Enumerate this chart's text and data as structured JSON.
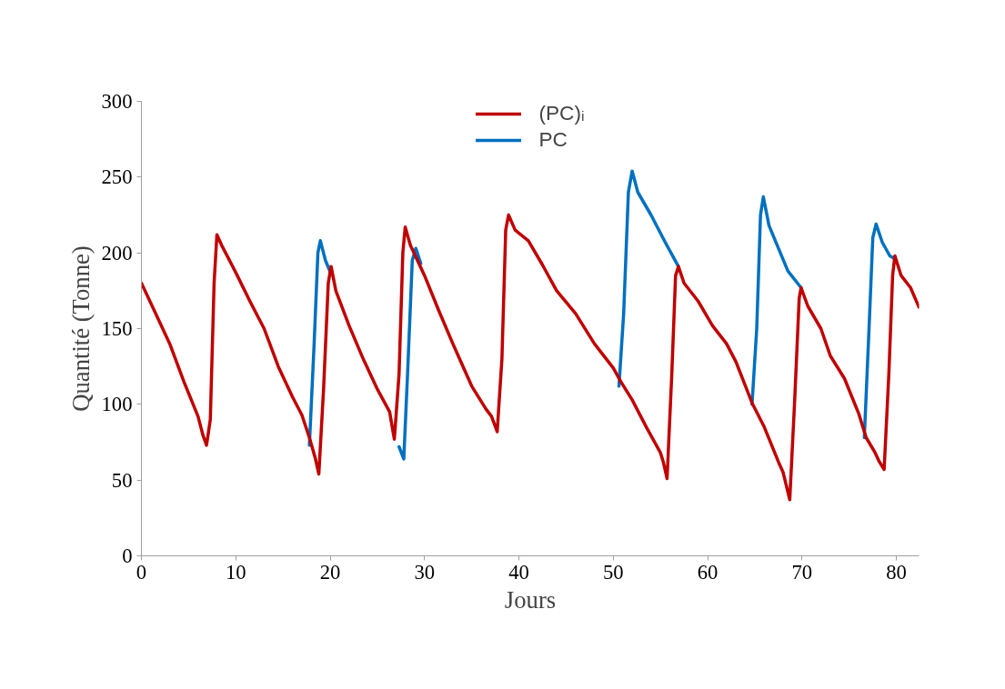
{
  "chart_data": {
    "type": "line",
    "xlabel": "Jours",
    "ylabel": "Quantité (Tonne)",
    "xlim": [
      0,
      82.4
    ],
    "xticks": [
      0,
      10,
      20,
      30,
      40,
      50,
      60,
      70,
      80
    ],
    "ylim": [
      0,
      300
    ],
    "yticks": [
      0,
      50,
      100,
      150,
      200,
      250,
      300
    ],
    "grid": false,
    "legend": "top",
    "line_style": "solid",
    "marker": "none",
    "series": [
      {
        "name": "(PC)ᵢ",
        "color": "#c00000",
        "x": [
          0,
          1.5,
          3,
          4.5,
          6,
          6.5,
          6.9,
          7.3,
          7.7,
          8,
          8.5,
          10,
          11.5,
          13,
          14.5,
          16,
          17,
          17.8,
          18.4,
          18.8,
          19.3,
          19.8,
          20.1,
          20.6,
          22,
          23.5,
          25,
          26.3,
          26.8,
          27.3,
          27.7,
          27.95,
          28.5,
          30,
          31.5,
          33,
          35,
          36.5,
          37.1,
          37.7,
          38.2,
          38.6,
          38.9,
          39.6,
          41,
          42.5,
          44,
          46,
          48,
          50,
          50.8,
          52,
          53.5,
          55,
          55.3,
          55.7,
          56.2,
          56.6,
          56.9,
          57.5,
          59,
          60.5,
          62,
          63,
          64.7,
          66,
          67.5,
          68,
          68.7,
          69.2,
          69.7,
          69.9,
          70.6,
          72,
          73,
          74.5,
          76,
          76.8,
          77.75,
          78.2,
          78.7,
          79.2,
          79.6,
          79.84,
          80.5,
          81.5,
          82.4
        ],
        "values": [
          180,
          160,
          140,
          115,
          92,
          80,
          73,
          90,
          180,
          212,
          205,
          187,
          168,
          150,
          125,
          105,
          93,
          78,
          65,
          54,
          110,
          180,
          191,
          175,
          152,
          130,
          110,
          95,
          77,
          120,
          200,
          217,
          205,
          185,
          162,
          140,
          112,
          97,
          92,
          82,
          130,
          215,
          225,
          215,
          208,
          192,
          175,
          160,
          140,
          124,
          115,
          103,
          85,
          68,
          62,
          51,
          120,
          185,
          191,
          180,
          168,
          152,
          140,
          128,
          101,
          85,
          62,
          55,
          37,
          100,
          170,
          177,
          165,
          150,
          132,
          117,
          94,
          78,
          68,
          62,
          57,
          120,
          185,
          198,
          185,
          177,
          164
        ]
      },
      {
        "name": "PC",
        "color": "#0070c0",
        "x": [
          17.8,
          18.3,
          18.7,
          18.96,
          19.5,
          20.1,
          23,
          27.3,
          27.8,
          28.2,
          28.7,
          29.08,
          29.6,
          40,
          50.6,
          51.1,
          51.6,
          52,
          52.6,
          54,
          55.5,
          56.9,
          60,
          64.7,
          65.2,
          65.6,
          65.9,
          66.5,
          67.5,
          68.5,
          69.9,
          72,
          76.6,
          77.1,
          77.5,
          77.85,
          78.5,
          79.3,
          79.84
        ],
        "values": [
          73,
          140,
          200,
          208,
          195,
          186,
          null,
          72,
          64,
          120,
          195,
          203,
          193,
          null,
          112,
          160,
          240,
          254,
          240,
          225,
          207,
          191,
          null,
          100,
          150,
          225,
          237,
          218,
          203,
          188,
          177,
          null,
          78,
          150,
          210,
          219,
          207,
          198,
          196
        ]
      }
    ]
  }
}
